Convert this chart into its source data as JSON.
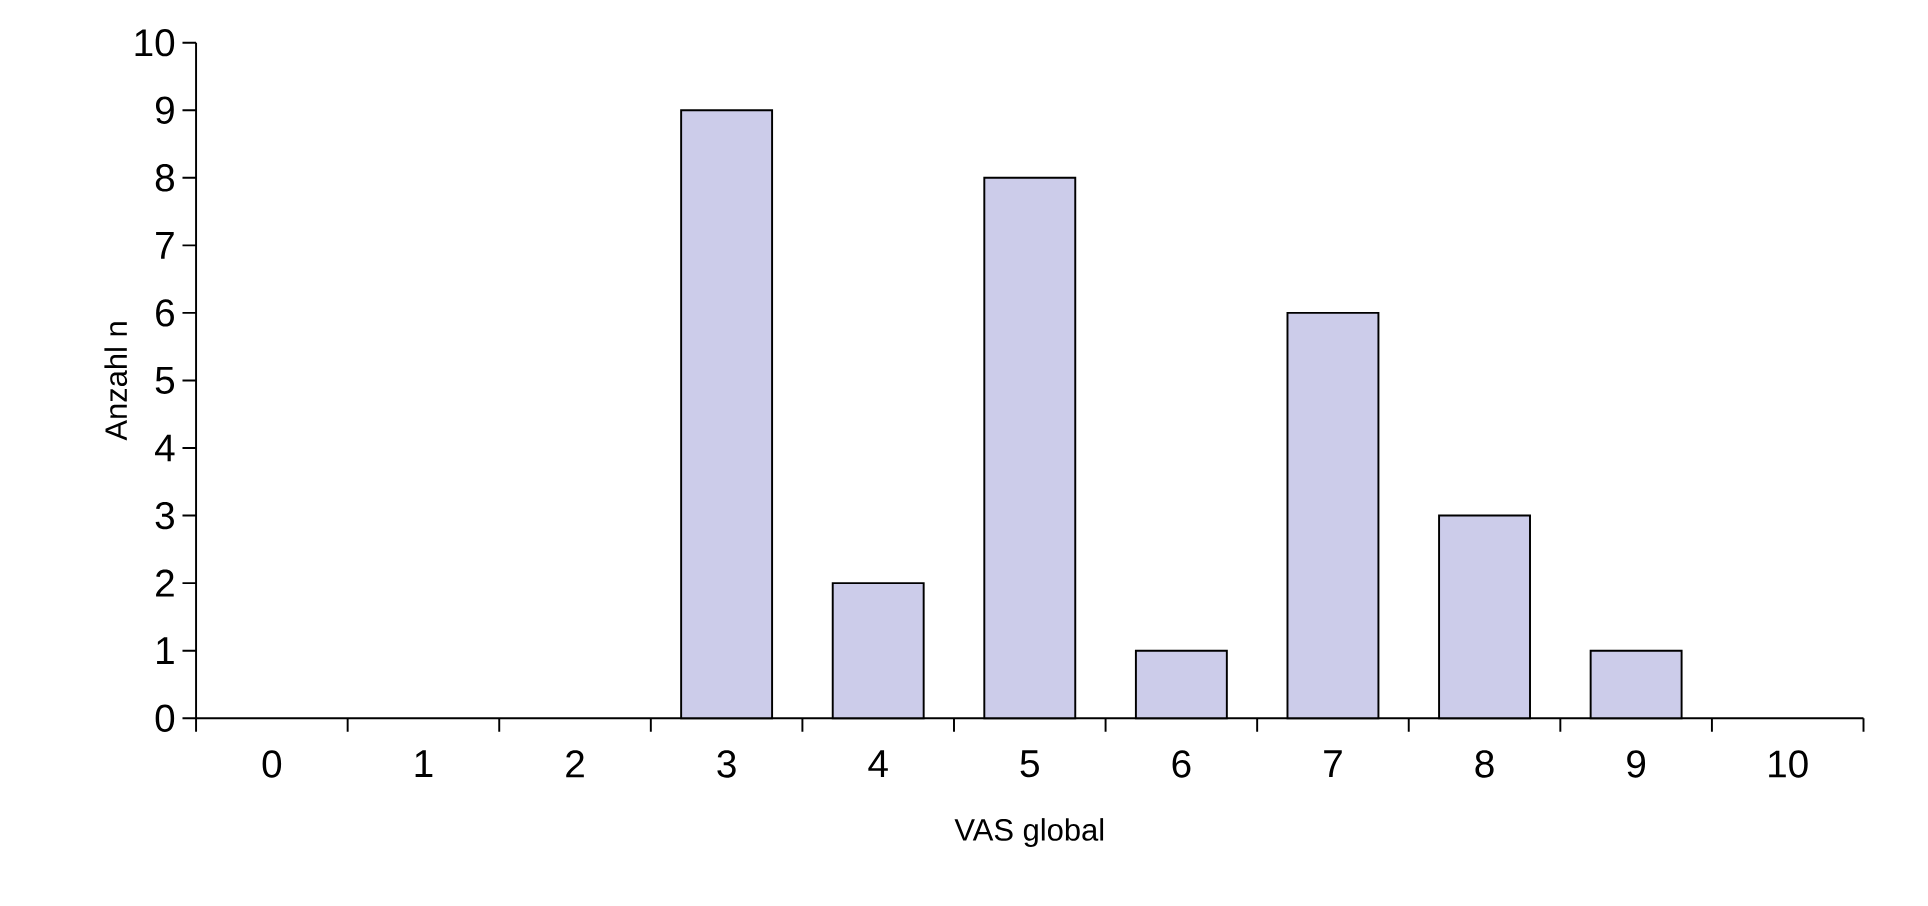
{
  "chart_data": {
    "type": "bar",
    "xlabel": "VAS global",
    "ylabel": "Anzahl n",
    "categories": [
      "0",
      "1",
      "2",
      "3",
      "4",
      "5",
      "6",
      "7",
      "8",
      "9",
      "10"
    ],
    "values": [
      0,
      0,
      0,
      9,
      2,
      8,
      1,
      6,
      3,
      1,
      0
    ],
    "color": "#ccccea",
    "ylim": [
      0,
      10
    ],
    "yticks": [
      0,
      1,
      2,
      3,
      4,
      5,
      6,
      7,
      8,
      9,
      10
    ]
  }
}
